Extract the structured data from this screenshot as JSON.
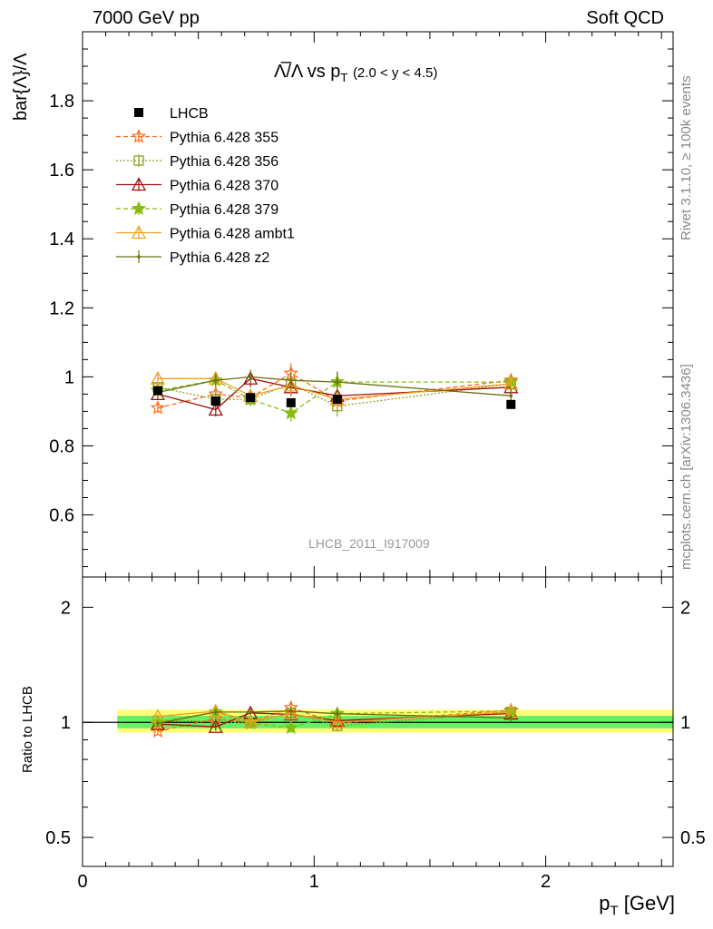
{
  "header": {
    "left": "7000 GeV pp",
    "right": "Soft QCD"
  },
  "side_labels": {
    "rivet": "Rivet 3.1.10, ≥ 100k events",
    "mcplots": "mcplots.cern.ch [arXiv:1306.3436]"
  },
  "chart_data": {
    "type": "line",
    "title": "Λ̅/Λ vs p_T (2.0 < y < 4.5)",
    "title_main": "Λ̅/Λ vs p",
    "title_sub": "T",
    "title_range": "(2.0 < y < 4.5)",
    "analysis_label": "LHCB_2011_I917009",
    "xlabel": "p_T [GeV]",
    "xlabel_main": "p",
    "xlabel_sub": "T",
    "xlabel_unit": "[GeV]",
    "ylabel": "bar{Λ}/Λ",
    "ratio_ylabel": "Ratio to LHCB",
    "xlim": [
      0,
      2.55
    ],
    "ylim": [
      0.42,
      2.0
    ],
    "ratio_ylim": [
      0.42,
      2.4
    ],
    "ratio_log": true,
    "grid": false,
    "legend_position": "top-left",
    "x_ticks": [
      "0",
      "1",
      "2"
    ],
    "y_ticks": [
      "0.6",
      "0.8",
      "1",
      "1.2",
      "1.4",
      "1.6",
      "1.8"
    ],
    "ratio_y_ticks": [
      "0.5",
      "1",
      "2"
    ],
    "x": [
      0.325,
      0.575,
      0.725,
      0.9,
      1.1,
      1.85
    ],
    "data": {
      "name": "LHCB",
      "values": [
        0.96,
        0.93,
        0.94,
        0.925,
        0.935,
        0.92
      ],
      "errors": [
        0.01,
        0.01,
        0.01,
        0.01,
        0.01,
        0.01
      ],
      "color": "#000000"
    },
    "band_inner": [
      0.15,
      2.55,
      0.965,
      1.04
    ],
    "band_outer": [
      0.15,
      2.55,
      0.94,
      1.08
    ],
    "band_colors": {
      "inner": "#66ee66",
      "outer": "#ffff77"
    },
    "series": [
      {
        "name": "Pythia 6.428 355",
        "values": [
          0.91,
          0.95,
          0.94,
          1.01,
          0.93,
          0.99
        ],
        "errors": [
          0.015,
          0.02,
          0.02,
          0.03,
          0.03,
          0.02
        ],
        "color": "#ff6a1a",
        "dash": "5,3",
        "marker": "star-open"
      },
      {
        "name": "Pythia 6.428 356",
        "values": [
          0.97,
          0.935,
          0.935,
          0.98,
          0.915,
          0.98
        ],
        "errors": [
          0.015,
          0.02,
          0.02,
          0.025,
          0.03,
          0.02
        ],
        "color": "#90a020",
        "dash": "2,2",
        "marker": "square-open"
      },
      {
        "name": "Pythia 6.428 370",
        "values": [
          0.95,
          0.905,
          0.995,
          0.97,
          0.945,
          0.97
        ],
        "errors": [
          0.015,
          0.02,
          0.025,
          0.025,
          0.03,
          0.02
        ],
        "color": "#9b1010",
        "dash": "",
        "marker": "triangle-open"
      },
      {
        "name": "Pythia 6.428 379",
        "values": [
          0.96,
          0.99,
          0.935,
          0.895,
          0.985,
          0.985
        ],
        "errors": [
          0.015,
          0.025,
          0.02,
          0.025,
          0.03,
          0.02
        ],
        "color": "#88bb10",
        "dash": "5,3",
        "marker": "star-filled"
      },
      {
        "name": "Pythia 6.428 ambt1",
        "values": [
          0.995,
          0.995,
          0.945,
          0.975,
          0.935,
          0.98
        ],
        "errors": [
          0.015,
          0.02,
          0.02,
          0.025,
          0.03,
          0.02
        ],
        "color": "#f0a020",
        "dash": "",
        "marker": "triangle-open"
      },
      {
        "name": "Pythia 6.428 z2",
        "values": [
          0.955,
          0.99,
          1.0,
          0.99,
          0.985,
          0.945
        ],
        "errors": [
          0.015,
          0.02,
          0.02,
          0.025,
          0.03,
          0.02
        ],
        "color": "#6b7010",
        "dash": "",
        "marker": "dot"
      }
    ]
  }
}
